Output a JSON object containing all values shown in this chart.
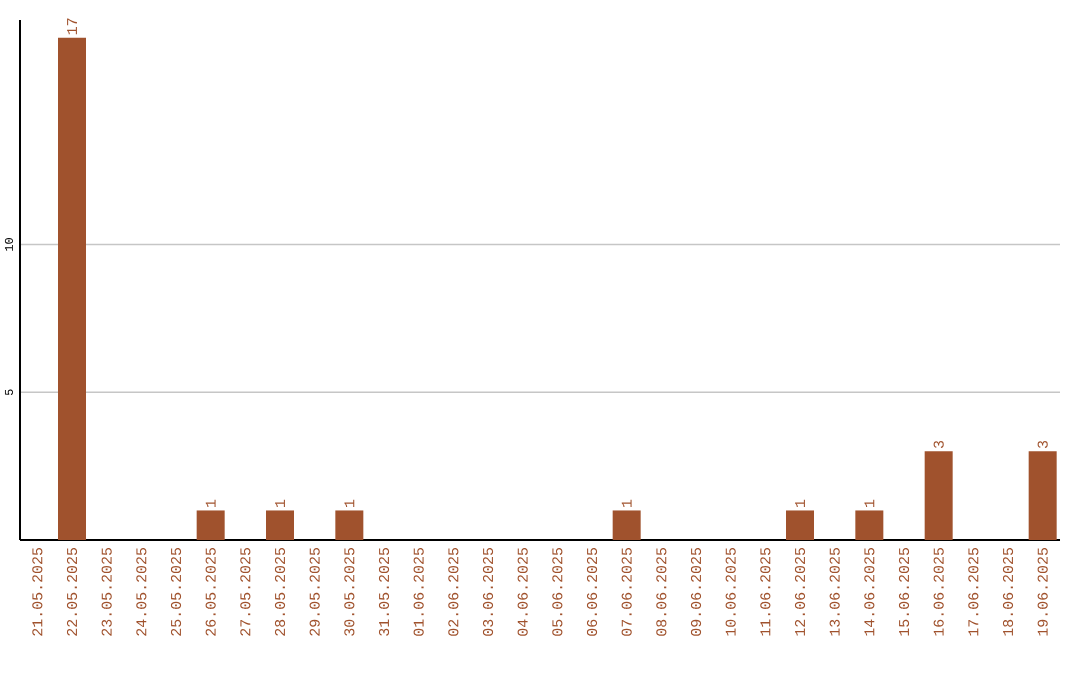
{
  "chart_data": {
    "type": "bar",
    "categories": [
      "21.05.2025",
      "22.05.2025",
      "23.05.2025",
      "24.05.2025",
      "25.05.2025",
      "26.05.2025",
      "27.05.2025",
      "28.05.2025",
      "29.05.2025",
      "30.05.2025",
      "31.05.2025",
      "01.06.2025",
      "02.06.2025",
      "03.06.2025",
      "04.06.2025",
      "05.06.2025",
      "06.06.2025",
      "07.06.2025",
      "08.06.2025",
      "09.06.2025",
      "10.06.2025",
      "11.06.2025",
      "12.06.2025",
      "13.06.2025",
      "14.06.2025",
      "15.06.2025",
      "16.06.2025",
      "17.06.2025",
      "18.06.2025",
      "19.06.2025"
    ],
    "values": [
      0,
      17,
      0,
      0,
      0,
      1,
      0,
      1,
      0,
      1,
      0,
      0,
      0,
      0,
      0,
      0,
      0,
      1,
      0,
      0,
      0,
      0,
      1,
      0,
      1,
      0,
      3,
      0,
      0,
      3
    ],
    "value_labels": [
      null,
      "17",
      null,
      null,
      null,
      "1",
      null,
      "1",
      null,
      "1",
      null,
      null,
      null,
      null,
      null,
      null,
      null,
      "1",
      null,
      null,
      null,
      null,
      "1",
      null,
      "1",
      null,
      "3",
      null,
      null,
      "3"
    ],
    "color": "#a0522d",
    "ylim": [
      0,
      17.6
    ],
    "yticks": [
      5,
      10
    ],
    "grid": "y"
  }
}
